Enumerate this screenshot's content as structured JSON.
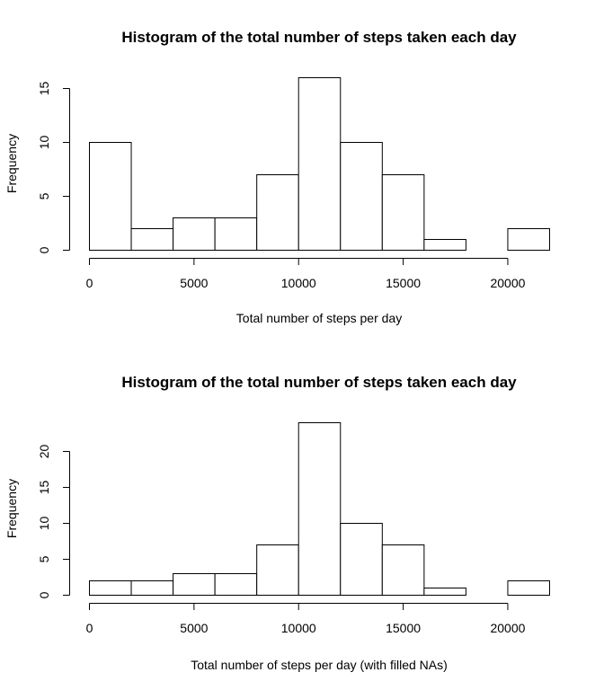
{
  "chart_data": [
    {
      "type": "histogram",
      "title": "Histogram of the total number of steps taken each day",
      "xlabel": "Total number of steps per day",
      "ylabel": "Frequency",
      "bin_width": 2000,
      "bins_start": [
        0,
        2000,
        4000,
        6000,
        8000,
        10000,
        12000,
        14000,
        16000,
        18000,
        20000
      ],
      "values": [
        10,
        2,
        3,
        3,
        7,
        16,
        10,
        7,
        1,
        0,
        2
      ],
      "xlim": [
        0,
        22000
      ],
      "ylim": [
        0,
        16
      ],
      "xticks": [
        0,
        5000,
        10000,
        15000,
        20000
      ],
      "yticks": [
        0,
        5,
        10,
        15
      ],
      "grid": false
    },
    {
      "type": "histogram",
      "title": "Histogram of the total number of steps taken each day",
      "xlabel": "Total number of steps per day (with filled NAs)",
      "ylabel": "Frequency",
      "bin_width": 2000,
      "bins_start": [
        0,
        2000,
        4000,
        6000,
        8000,
        10000,
        12000,
        14000,
        16000,
        18000,
        20000
      ],
      "values": [
        2,
        2,
        3,
        3,
        7,
        24,
        10,
        7,
        1,
        0,
        2
      ],
      "xlim": [
        0,
        22000
      ],
      "ylim": [
        0,
        24
      ],
      "xticks": [
        0,
        5000,
        10000,
        15000,
        20000
      ],
      "yticks": [
        0,
        5,
        10,
        15,
        20
      ],
      "grid": false
    }
  ]
}
